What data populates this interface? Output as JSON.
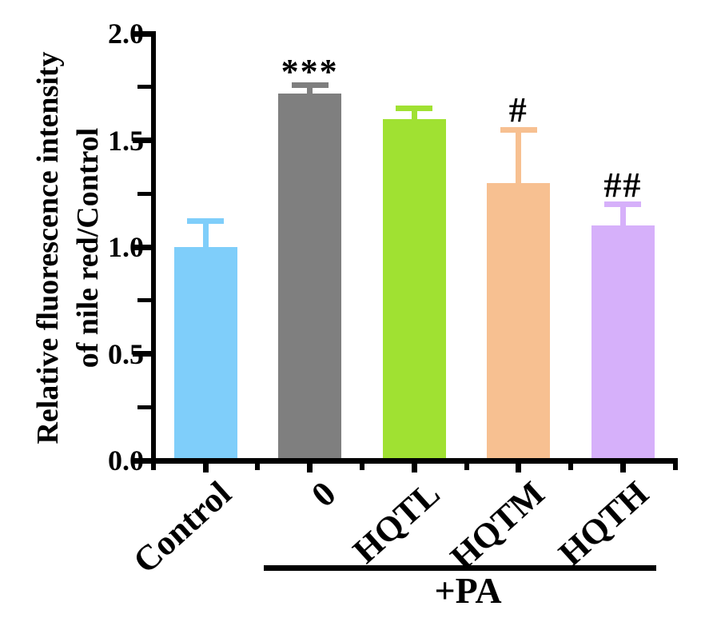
{
  "chart_data": {
    "type": "bar",
    "title": "",
    "ylabel": "Relative fluorescence intensity of nile red/Control",
    "ylabel_lines": [
      "Relative fluorescence intensity",
      "of nile red/Control"
    ],
    "xlabel": "",
    "categories": [
      "Control",
      "0",
      "HQTL",
      "HQTM",
      "HQTH"
    ],
    "values": [
      1.0,
      1.72,
      1.6,
      1.3,
      1.1
    ],
    "errors": [
      0.12,
      0.04,
      0.05,
      0.25,
      0.1
    ],
    "error_bars": "upper only, caps colored as bars",
    "bar_colors": [
      "#7FCEFA",
      "#7F7F7F",
      "#A0E132",
      "#F7C091",
      "#D6B0FA"
    ],
    "axis_color": "#000000",
    "annotations": [
      {
        "category_index": 1,
        "text": "***"
      },
      {
        "category_index": 3,
        "text": "#"
      },
      {
        "category_index": 4,
        "text": "##"
      }
    ],
    "group": {
      "label": "+PA",
      "members": [
        "0",
        "HQTL",
        "HQTM",
        "HQTH"
      ]
    },
    "y_axis": {
      "min": 0.0,
      "max": 2.0,
      "major_tick_labels": [
        "0.0",
        "0.5",
        "1.0",
        "1.5",
        "2.0"
      ],
      "major_tick_values": [
        0,
        0.5,
        1,
        1.5,
        2
      ],
      "minor_tick_values": [
        0.25,
        0.75,
        1.25,
        1.75
      ]
    },
    "grid": false,
    "legend": false
  }
}
